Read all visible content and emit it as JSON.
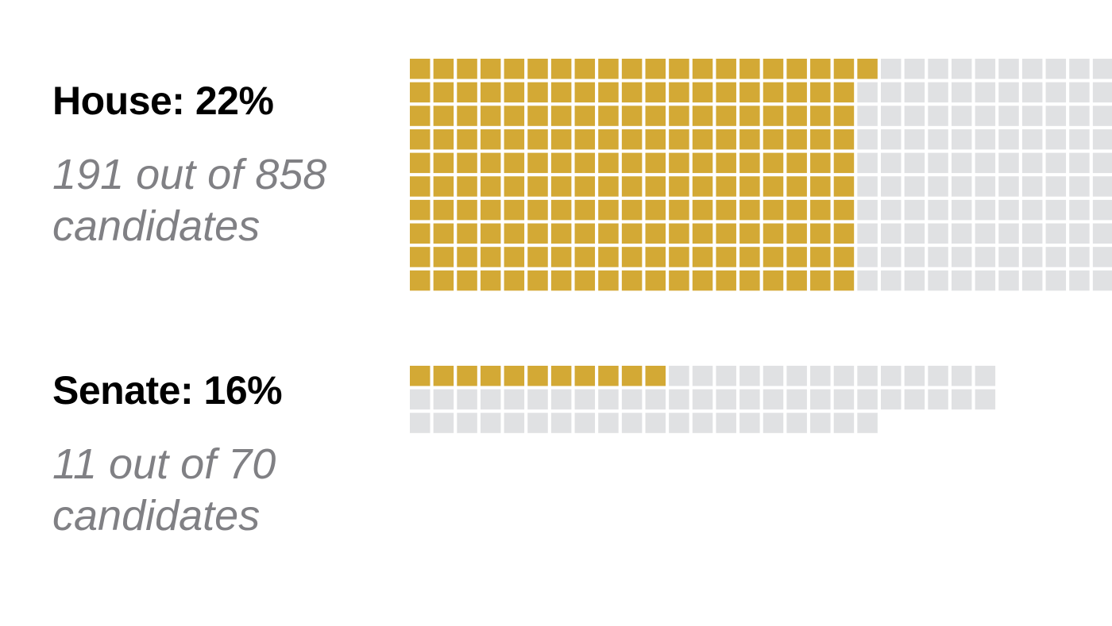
{
  "colors": {
    "highlight": "#D3A935",
    "remainder": "#E0E1E3"
  },
  "chart_data": [
    {
      "type": "waffle",
      "title": "House: 22%",
      "subtitle": "191 out of 858 candidates",
      "highlighted": 191,
      "total": 858,
      "percent": 22,
      "rows": 10,
      "fill_order": "column"
    },
    {
      "type": "waffle",
      "title": "Senate: 16%",
      "subtitle": "11 out of 70 candidates",
      "highlighted": 11,
      "total": 70,
      "percent": 16,
      "columns": 25,
      "fill_order": "row"
    }
  ]
}
